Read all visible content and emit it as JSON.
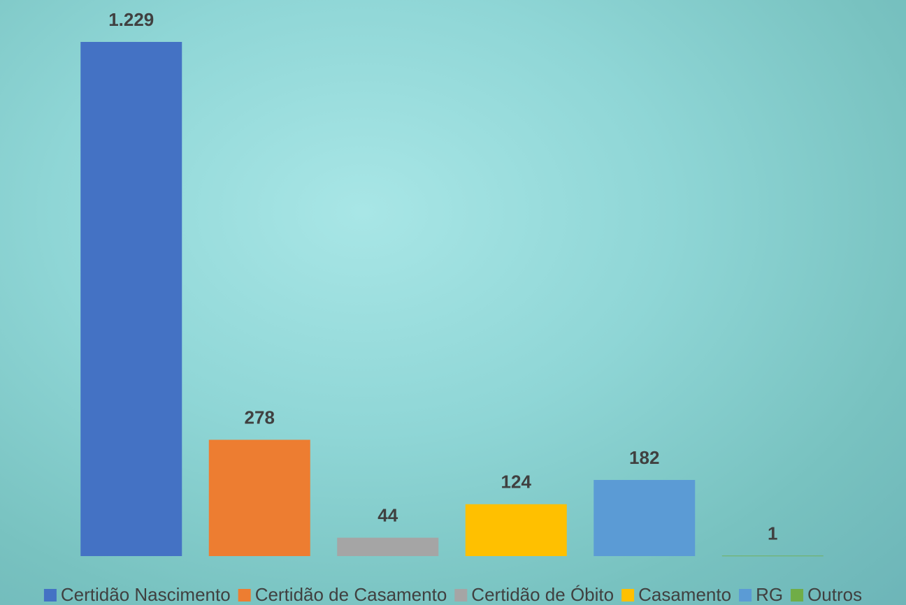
{
  "chart_data": {
    "type": "bar",
    "categories": [
      null
    ],
    "series": [
      {
        "name": "Certidão Nascimento",
        "color": "#4472c4",
        "values": [
          1229
        ],
        "value_labels": [
          "1.229"
        ]
      },
      {
        "name": "Certidão de Casamento",
        "color": "#ed7d31",
        "values": [
          278
        ]
      },
      {
        "name": "Certidão de Óbito",
        "color": "#a5a5a5",
        "values": [
          44
        ]
      },
      {
        "name": "Casamento",
        "color": "#ffc000",
        "values": [
          124
        ]
      },
      {
        "name": "RG",
        "color": "#5b9bd5",
        "values": [
          182
        ]
      },
      {
        "name": "Outros",
        "color": "#70ad47",
        "values": [
          1
        ]
      }
    ]
  }
}
